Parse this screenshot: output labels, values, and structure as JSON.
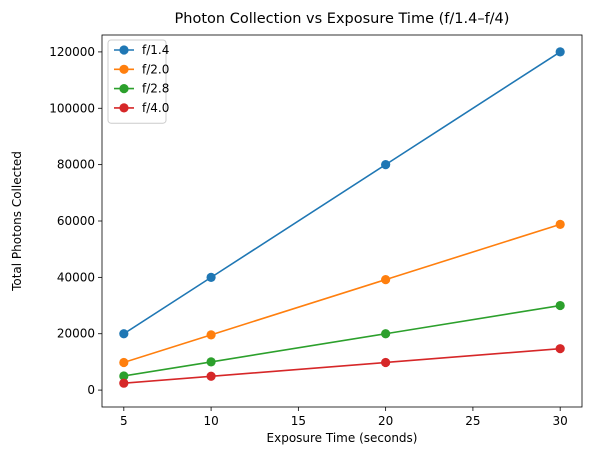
{
  "chart_data": {
    "type": "line",
    "title": "Photon Collection vs Exposure Time (f/1.4–f/4)",
    "xlabel": "Exposure Time (seconds)",
    "ylabel": "Total Photons Collected",
    "x": [
      5,
      10,
      20,
      30
    ],
    "xlim": [
      3.75,
      31.25
    ],
    "ylim": [
      -6000,
      126000
    ],
    "xticks": [
      5,
      10,
      15,
      20,
      25,
      30
    ],
    "yticks": [
      0,
      20000,
      40000,
      60000,
      80000,
      100000,
      120000
    ],
    "grid": false,
    "legend_position": "top-left",
    "series": [
      {
        "name": "f/1.4",
        "color": "#1f77b4",
        "values": [
          20000,
          40000,
          80000,
          120000
        ]
      },
      {
        "name": "f/2.0",
        "color": "#ff7f0e",
        "values": [
          9800,
          19600,
          39200,
          58800
        ]
      },
      {
        "name": "f/2.8",
        "color": "#2ca02c",
        "values": [
          5000,
          10000,
          20000,
          30000
        ]
      },
      {
        "name": "f/4.0",
        "color": "#d62728",
        "values": [
          2450,
          4900,
          9800,
          14700
        ]
      }
    ]
  }
}
